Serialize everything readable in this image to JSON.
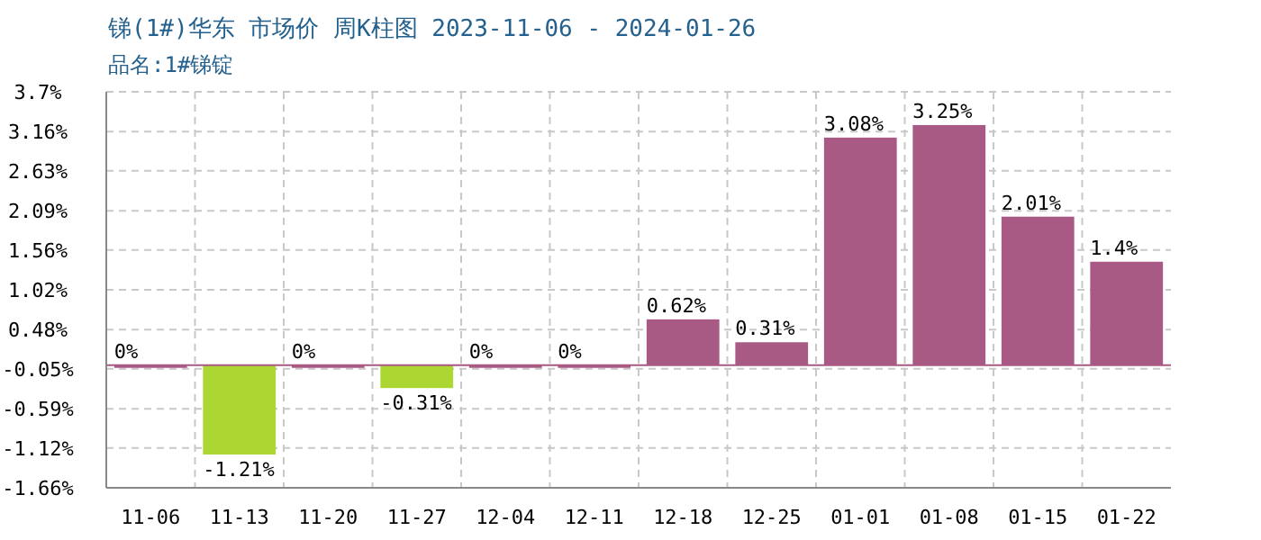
{
  "chart_data": {
    "type": "bar",
    "title": "锑(1#)华东 市场价 周K柱图 2023-11-06 - 2024-01-26",
    "subtitle": "品名:1#锑锭",
    "categories": [
      "11-06",
      "11-13",
      "11-20",
      "11-27",
      "12-04",
      "12-11",
      "12-18",
      "12-25",
      "01-01",
      "01-08",
      "01-15",
      "01-22"
    ],
    "values": [
      0,
      -1.21,
      0,
      -0.31,
      0,
      0,
      0.62,
      0.31,
      3.08,
      3.25,
      2.01,
      1.4
    ],
    "colors": [
      "#a85a85",
      "#acd733",
      "#a85a85",
      "#acd733",
      "#a85a85",
      "#a85a85",
      "#a85a85",
      "#a85a85",
      "#a85a85",
      "#a85a85",
      "#a85a85",
      "#a85a85"
    ],
    "value_labels": [
      "0%",
      "-1.21%",
      "0%",
      "-0.31%",
      "0%",
      "0%",
      "0.62%",
      "0.31%",
      "3.08%",
      "3.25%",
      "2.01%",
      "1.4%"
    ],
    "ylim": [
      -1.66,
      3.7
    ],
    "yticks": [
      {
        "value": 3.7,
        "label": "3.7%"
      },
      {
        "value": 3.16,
        "label": "3.16%"
      },
      {
        "value": 2.63,
        "label": "2.63%"
      },
      {
        "value": 2.09,
        "label": "2.09%"
      },
      {
        "value": 1.56,
        "label": "1.56%"
      },
      {
        "value": 1.02,
        "label": "1.02%"
      },
      {
        "value": 0.48,
        "label": "0.48%"
      },
      {
        "value": -0.05,
        "label": "-0.05%"
      },
      {
        "value": -0.59,
        "label": "-0.59%"
      },
      {
        "value": -1.12,
        "label": "-1.12%"
      },
      {
        "value": -1.66,
        "label": "-1.66%"
      }
    ],
    "ref_lines": [
      {
        "axis": "y",
        "value": 0,
        "color": "#a85a85"
      }
    ],
    "grid": true
  }
}
